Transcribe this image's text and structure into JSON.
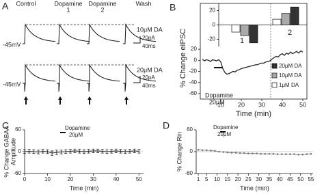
{
  "panel_a": {
    "panel": "A",
    "conditions": [
      [
        "Control"
      ],
      [
        "Dopamine",
        "1"
      ],
      [
        "Dopamine",
        "2"
      ],
      [
        "Wash"
      ]
    ],
    "rows": [
      {
        "concentration": "10μM DA",
        "holding": "-45mV",
        "scale_current": "20pA",
        "scale_time": "40ms"
      },
      {
        "concentration": "20μM DA",
        "holding": "-45mV",
        "scale_current": "20pA",
        "scale_time": "40ms"
      }
    ]
  },
  "chart_data": [
    {
      "type": "line",
      "panel": "B",
      "ylabel": "% Change eIPSC",
      "xlabel": "Time (min)",
      "annotation": [
        "Dopamine",
        "20μM"
      ],
      "x": [
        1,
        2,
        3,
        4,
        5,
        6,
        7,
        8,
        9,
        10,
        11,
        12,
        13,
        14,
        15,
        16,
        17,
        18,
        19,
        20,
        21,
        22,
        23,
        24,
        25,
        26,
        27,
        28,
        29,
        30,
        31,
        32,
        33,
        34,
        35,
        36,
        37,
        38,
        39,
        40,
        41,
        42,
        43,
        44,
        45,
        46,
        47,
        48,
        49,
        50
      ],
      "values": [
        2,
        -1,
        1,
        0,
        -2,
        1,
        0,
        -1,
        1,
        -3,
        -15,
        -22,
        -25,
        -24,
        -22,
        -20,
        -21,
        -18,
        -17,
        -15,
        -14,
        -13,
        -12,
        -11,
        -10,
        -9,
        -8,
        -8,
        -6,
        -5,
        -5,
        -3,
        -2,
        -1,
        2,
        5,
        7,
        6,
        10,
        12,
        9,
        13,
        11,
        15,
        12,
        14,
        16,
        13,
        17,
        15
      ],
      "color": "#222",
      "xlim": [
        0,
        52
      ],
      "ylim": [
        -70,
        30
      ],
      "xticks": [
        10,
        20,
        30,
        40,
        50
      ],
      "yticks": [
        20,
        0,
        -20,
        -40,
        -60
      ],
      "inset": {
        "type": "bar",
        "categories": [
          "1",
          "2"
        ],
        "ylim": [
          -30,
          30
        ],
        "yticks": [
          20,
          0,
          -20
        ],
        "series": [
          {
            "name": "20μM DA",
            "color": "#333333",
            "values": [
              -25,
              25
            ]
          },
          {
            "name": "10μM DA",
            "color": "#aaaaaa",
            "values": [
              -15,
              16
            ]
          },
          {
            "name": "1μM DA",
            "color": "#ffffff",
            "values": [
              -10,
              8
            ]
          }
        ]
      }
    },
    {
      "type": "errorline",
      "panel": "C",
      "ylabel": [
        "% Change GABAA",
        "Amplitude"
      ],
      "xlabel": "Time (min)",
      "annotation": [
        "Dopamine",
        "20μM"
      ],
      "x": [
        0,
        2,
        4,
        6,
        8,
        10,
        12,
        14,
        16,
        18,
        20,
        22,
        24,
        26,
        28,
        30,
        32,
        34,
        36,
        38,
        40,
        42,
        44,
        46,
        48,
        50
      ],
      "values": [
        0,
        1,
        0,
        -1,
        1,
        0,
        -4,
        -2,
        -1,
        0,
        1,
        2,
        1,
        0,
        1,
        2,
        2,
        1,
        0,
        1,
        2,
        1,
        0,
        1,
        2,
        1
      ],
      "errors": [
        5,
        5,
        5,
        5,
        5,
        5,
        6,
        6,
        5,
        5,
        5,
        5,
        5,
        5,
        5,
        5,
        5,
        5,
        5,
        5,
        5,
        5,
        5,
        5,
        5,
        5
      ],
      "color": "#222",
      "xlim": [
        0,
        52
      ],
      "ylim": [
        -60,
        60
      ],
      "xticks": [
        0,
        10,
        20,
        30,
        40,
        50
      ],
      "yticks": [
        60,
        0,
        -60
      ]
    },
    {
      "type": "scatterline",
      "panel": "D",
      "ylabel": "% Change Rin",
      "xlabel": "Time (min)",
      "annotation": [
        "Dopamine",
        "20μM"
      ],
      "x": [
        1,
        3,
        5,
        7,
        9,
        11,
        13,
        15,
        17,
        19,
        21,
        23,
        25,
        27,
        29,
        31,
        33,
        35,
        37,
        39,
        41,
        43,
        45,
        47,
        49,
        51,
        53,
        55
      ],
      "values": [
        5,
        4,
        4,
        3,
        2,
        0,
        -1,
        -2,
        -3,
        -3,
        -4,
        -4,
        -5,
        -5,
        -5,
        -6,
        -6,
        -6,
        -6,
        -7,
        -7,
        -7,
        -7,
        -7,
        -8,
        -8,
        -7,
        -6
      ],
      "color": "#777",
      "xlim": [
        0,
        56
      ],
      "ylim": [
        -60,
        60
      ],
      "xticks": [
        1,
        5,
        10,
        15,
        20,
        25,
        30,
        35,
        40,
        45,
        50,
        55
      ],
      "yticks": [
        60,
        0,
        -60
      ]
    }
  ]
}
